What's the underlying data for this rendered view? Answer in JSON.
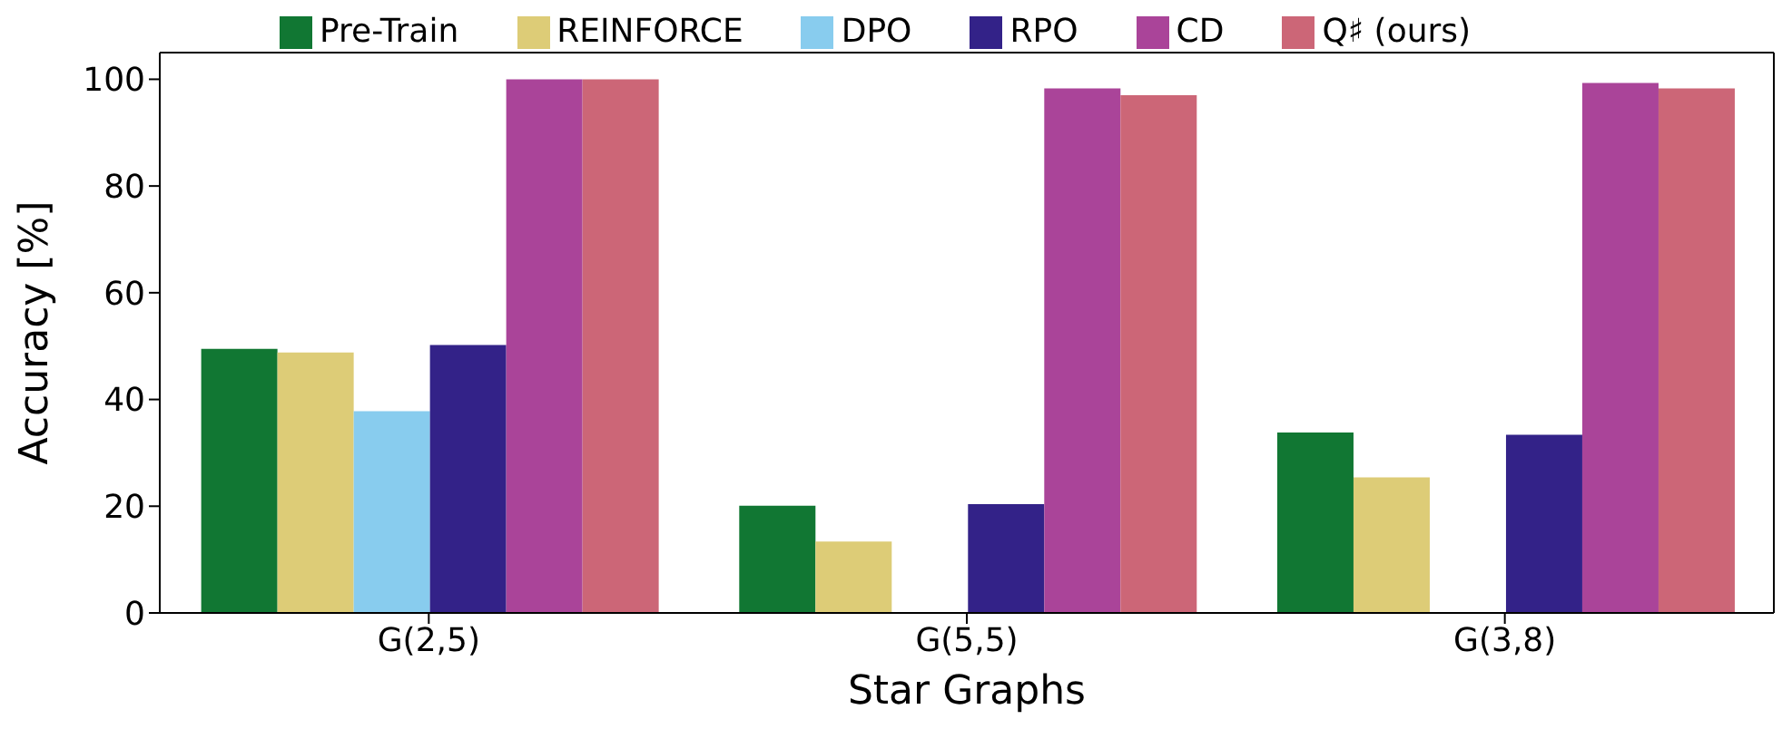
{
  "chart_data": {
    "type": "bar",
    "xlabel": "Star Graphs",
    "ylabel": "Accuracy [%]",
    "categories": [
      "G(2,5)",
      "G(5,5)",
      "G(3,8)"
    ],
    "series": [
      {
        "name": "Pre-Train",
        "color": "#117733",
        "values": [
          49.5,
          20.1,
          33.8
        ]
      },
      {
        "name": "REINFORCE",
        "color": "#ddcc77",
        "values": [
          48.8,
          13.4,
          25.4
        ]
      },
      {
        "name": "DPO",
        "color": "#88ccee",
        "values": [
          37.8,
          null,
          null
        ]
      },
      {
        "name": "RPO",
        "color": "#332288",
        "values": [
          50.2,
          20.4,
          33.4
        ]
      },
      {
        "name": "CD",
        "color": "#aa4499",
        "values": [
          100,
          98.3,
          99.3
        ]
      },
      {
        "name": "Q♯ (ours)",
        "color": "#cc6677",
        "values": [
          100,
          97.0,
          98.3
        ]
      }
    ],
    "ylim": [
      0,
      105
    ],
    "yticks": [
      0,
      20,
      40,
      60,
      80,
      100
    ],
    "legend": "top"
  }
}
